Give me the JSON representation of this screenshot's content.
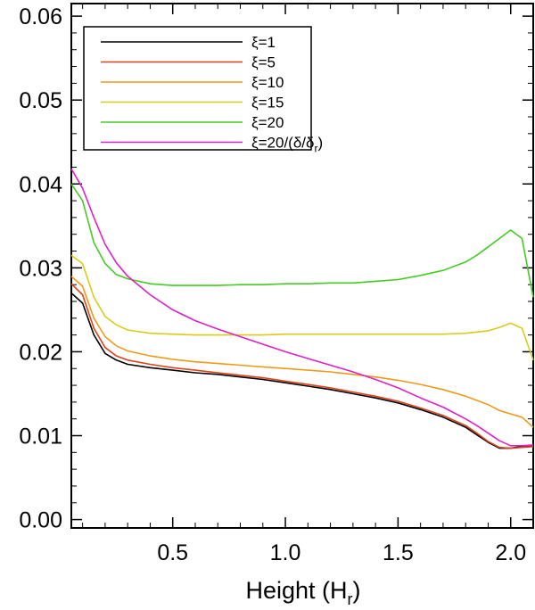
{
  "chart_data": {
    "type": "line",
    "title": "",
    "xlabel": "Height (H",
    "xlabel_sub": "r",
    "xlabel_close": ")",
    "ylabel": "",
    "xlim": [
      0.05,
      2.1
    ],
    "ylim": [
      -0.001,
      0.0615
    ],
    "xticks": [
      0.5,
      1.0,
      1.5,
      2.0
    ],
    "xtick_labels": [
      "0.5",
      "1.0",
      "1.5",
      "2.0"
    ],
    "yticks": [
      0.0,
      0.01,
      0.02,
      0.03,
      0.04,
      0.05,
      0.06
    ],
    "ytick_labels": [
      "0.00",
      "0.01",
      "0.02",
      "0.03",
      "0.04",
      "0.05",
      "0.06"
    ],
    "grid": false,
    "legend_position": "top-left",
    "series": [
      {
        "name": "ξ=1",
        "color": "#000000",
        "x": [
          0.05,
          0.1,
          0.15,
          0.2,
          0.25,
          0.3,
          0.4,
          0.5,
          0.6,
          0.7,
          0.8,
          0.9,
          1.0,
          1.1,
          1.2,
          1.3,
          1.4,
          1.5,
          1.6,
          1.7,
          1.8,
          1.85,
          1.9,
          1.95,
          2.0,
          2.05,
          2.1
        ],
        "y": [
          0.027,
          0.0258,
          0.022,
          0.0198,
          0.019,
          0.0185,
          0.0181,
          0.0178,
          0.0175,
          0.0173,
          0.017,
          0.0167,
          0.0163,
          0.0159,
          0.0155,
          0.015,
          0.0145,
          0.0139,
          0.0131,
          0.0122,
          0.011,
          0.0101,
          0.0092,
          0.0085,
          0.0085,
          0.0087,
          0.0088
        ]
      },
      {
        "name": "ξ=5",
        "color": "#e0401a",
        "x": [
          0.05,
          0.1,
          0.15,
          0.2,
          0.25,
          0.3,
          0.4,
          0.5,
          0.6,
          0.7,
          0.8,
          0.9,
          1.0,
          1.1,
          1.2,
          1.3,
          1.4,
          1.5,
          1.6,
          1.7,
          1.8,
          1.85,
          1.9,
          1.95,
          2.0,
          2.05,
          2.1
        ],
        "y": [
          0.0281,
          0.0268,
          0.0228,
          0.0205,
          0.0195,
          0.019,
          0.0185,
          0.0181,
          0.0178,
          0.0175,
          0.0172,
          0.0169,
          0.0165,
          0.0161,
          0.0157,
          0.0152,
          0.0147,
          0.0141,
          0.0133,
          0.0124,
          0.0112,
          0.0103,
          0.0093,
          0.0086,
          0.0085,
          0.0086,
          0.0087
        ]
      },
      {
        "name": "ξ=10",
        "color": "#f09a1a",
        "x": [
          0.05,
          0.1,
          0.15,
          0.2,
          0.25,
          0.3,
          0.4,
          0.5,
          0.6,
          0.7,
          0.8,
          0.9,
          1.0,
          1.1,
          1.2,
          1.3,
          1.4,
          1.5,
          1.6,
          1.7,
          1.8,
          1.9,
          1.95,
          2.0,
          2.05,
          2.1
        ],
        "y": [
          0.029,
          0.0278,
          0.024,
          0.0218,
          0.0207,
          0.0201,
          0.0195,
          0.0191,
          0.0188,
          0.0186,
          0.0184,
          0.0182,
          0.018,
          0.0178,
          0.0176,
          0.0173,
          0.017,
          0.0166,
          0.0161,
          0.0155,
          0.0147,
          0.0137,
          0.013,
          0.0126,
          0.0122,
          0.011
        ]
      },
      {
        "name": "ξ=15",
        "color": "#d8cc1a",
        "x": [
          0.05,
          0.1,
          0.15,
          0.2,
          0.25,
          0.3,
          0.4,
          0.5,
          0.6,
          0.7,
          0.8,
          0.9,
          1.0,
          1.1,
          1.2,
          1.3,
          1.4,
          1.5,
          1.6,
          1.7,
          1.8,
          1.9,
          1.95,
          2.0,
          2.05,
          2.1
        ],
        "y": [
          0.0315,
          0.0305,
          0.0265,
          0.0242,
          0.0232,
          0.0226,
          0.0222,
          0.0221,
          0.022,
          0.022,
          0.022,
          0.022,
          0.0221,
          0.0221,
          0.0221,
          0.0221,
          0.0221,
          0.0221,
          0.0221,
          0.0221,
          0.0222,
          0.0225,
          0.0229,
          0.0234,
          0.0228,
          0.019
        ]
      },
      {
        "name": "ξ=20",
        "color": "#44cc22",
        "x": [
          0.05,
          0.1,
          0.15,
          0.2,
          0.25,
          0.3,
          0.4,
          0.5,
          0.6,
          0.7,
          0.8,
          0.9,
          1.0,
          1.1,
          1.2,
          1.3,
          1.4,
          1.5,
          1.6,
          1.7,
          1.8,
          1.85,
          1.9,
          1.95,
          2.0,
          2.05,
          2.1
        ],
        "y": [
          0.04,
          0.038,
          0.033,
          0.0305,
          0.0292,
          0.0287,
          0.0281,
          0.0279,
          0.0279,
          0.0279,
          0.028,
          0.028,
          0.0281,
          0.0281,
          0.0282,
          0.0282,
          0.0284,
          0.0286,
          0.0291,
          0.0297,
          0.0307,
          0.0315,
          0.0325,
          0.0335,
          0.0345,
          0.0335,
          0.0265
        ]
      },
      {
        "name": "ξ=20/(δ/δ",
        "name_sub": "r",
        "name_close": ")",
        "color": "#e020c8",
        "x": [
          0.05,
          0.1,
          0.15,
          0.2,
          0.25,
          0.3,
          0.4,
          0.5,
          0.6,
          0.7,
          0.8,
          0.9,
          1.0,
          1.1,
          1.2,
          1.3,
          1.4,
          1.5,
          1.6,
          1.7,
          1.8,
          1.85,
          1.9,
          1.95,
          2.0,
          2.05,
          2.1
        ],
        "y": [
          0.0418,
          0.0395,
          0.036,
          0.0328,
          0.0306,
          0.029,
          0.0268,
          0.025,
          0.0237,
          0.0227,
          0.0218,
          0.0209,
          0.02,
          0.0192,
          0.0184,
          0.0176,
          0.0167,
          0.0157,
          0.0145,
          0.0134,
          0.012,
          0.0112,
          0.0103,
          0.0094,
          0.0088,
          0.0088,
          0.0089
        ]
      }
    ]
  }
}
